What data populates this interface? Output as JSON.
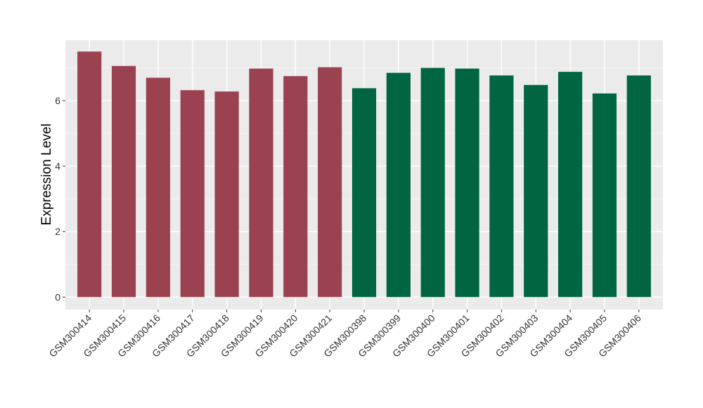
{
  "chart_data": {
    "type": "bar",
    "title": "",
    "xlabel": "",
    "ylabel": "Expression Level",
    "ylim": [
      -0.38,
      7.85
    ],
    "yticks": [
      0,
      2,
      4,
      6
    ],
    "grid": true,
    "legend": "none",
    "panel_background": "#EBEBEB",
    "categories": [
      "GSM300414",
      "GSM300415",
      "GSM300416",
      "GSM300417",
      "GSM300418",
      "GSM300419",
      "GSM300420",
      "GSM300421",
      "GSM300398",
      "GSM300399",
      "GSM300400",
      "GSM300401",
      "GSM300402",
      "GSM300403",
      "GSM300404",
      "GSM300405",
      "GSM300406"
    ],
    "values": [
      7.5,
      7.06,
      6.7,
      6.32,
      6.28,
      6.98,
      6.75,
      7.02,
      6.38,
      6.85,
      7.0,
      6.98,
      6.77,
      6.48,
      6.88,
      6.22,
      6.77
    ],
    "colors": [
      "#9B4250",
      "#9B4250",
      "#9B4250",
      "#9B4250",
      "#9B4250",
      "#9B4250",
      "#9B4250",
      "#9B4250",
      "#006641",
      "#006641",
      "#006641",
      "#006641",
      "#006641",
      "#006641",
      "#006641",
      "#006641",
      "#006641"
    ]
  }
}
